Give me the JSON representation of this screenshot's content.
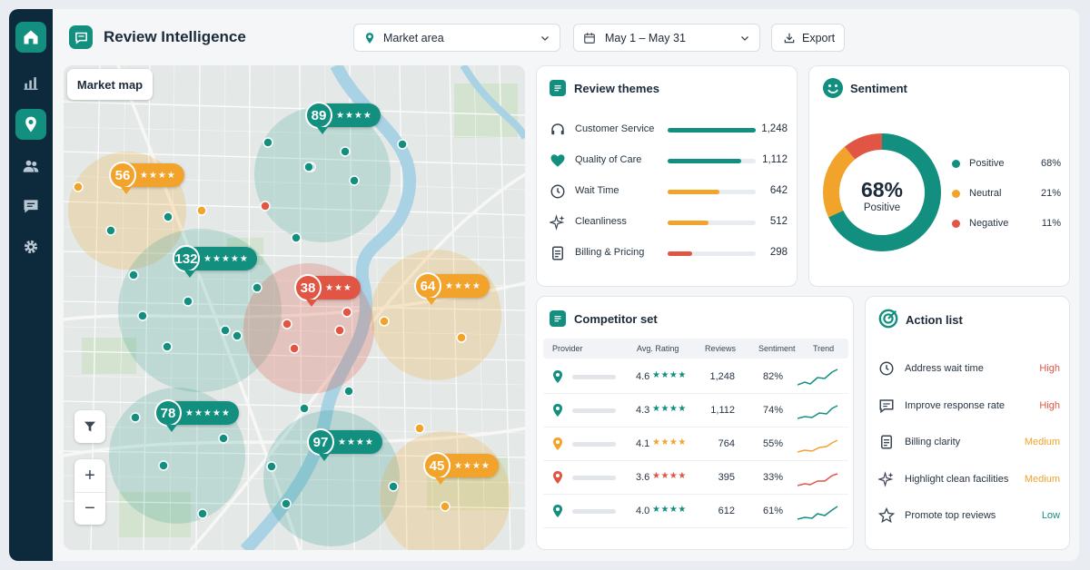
{
  "header": {
    "title": "Review Intelligence",
    "market_select": "Market area",
    "date_select": "May 1 – May 31",
    "export_label": "Export"
  },
  "sidebar": {
    "items": [
      {
        "name": "home",
        "icon": "home-icon",
        "active": true
      },
      {
        "name": "analytics",
        "icon": "bar-chart-icon",
        "active": false
      },
      {
        "name": "locations",
        "icon": "location-pin-icon",
        "active": true
      },
      {
        "name": "people",
        "icon": "users-icon",
        "active": false
      },
      {
        "name": "messages",
        "icon": "chat-icon",
        "active": false
      },
      {
        "name": "settings",
        "icon": "gear-icon",
        "active": false
      }
    ]
  },
  "map": {
    "label": "Market map",
    "pins": [
      {
        "value": "89",
        "stars": "★★★★",
        "color": "#138f80"
      },
      {
        "value": "56",
        "stars": "★★★★",
        "color": "#f2a32b"
      },
      {
        "value": "132",
        "stars": "★★★★★",
        "color": "#138f80"
      },
      {
        "value": "38",
        "stars": "★★★",
        "color": "#e05543"
      },
      {
        "value": "64",
        "stars": "★★★★",
        "color": "#f2a32b"
      },
      {
        "value": "78",
        "stars": "★★★★★",
        "color": "#138f80"
      },
      {
        "value": "97",
        "stars": "★★★★",
        "color": "#138f80"
      },
      {
        "value": "45",
        "stars": "★★★★",
        "color": "#f2a32b"
      }
    ],
    "zoom_in": "+",
    "zoom_out": "−"
  },
  "themes": {
    "title": "Review themes",
    "items": [
      {
        "label": "Customer Service",
        "value": "1,248",
        "fill": 1.0,
        "color": "#138f80"
      },
      {
        "label": "Quality of Care",
        "value": "1,112",
        "fill": 0.83,
        "color": "#138f80"
      },
      {
        "label": "Wait Time",
        "value": "642",
        "fill": 0.59,
        "color": "#f2a32b"
      },
      {
        "label": "Cleanliness",
        "value": "512",
        "fill": 0.46,
        "color": "#f2a32b"
      },
      {
        "label": "Billing & Pricing",
        "value": "298",
        "fill": 0.28,
        "color": "#e05543"
      }
    ]
  },
  "sentiment": {
    "title": "Sentiment",
    "center_value": "68%",
    "center_label": "Positive",
    "items": [
      {
        "label": "Positive",
        "value": "68%",
        "share": 68,
        "color": "#138f80"
      },
      {
        "label": "Neutral",
        "value": "21%",
        "share": 21,
        "color": "#f2a32b"
      },
      {
        "label": "Negative",
        "value": "11%",
        "share": 11,
        "color": "#e05543"
      }
    ]
  },
  "competitors": {
    "title": "Competitor set",
    "columns": [
      "Provider",
      "Avg. Rating",
      "Reviews",
      "Sentiment",
      "Trend"
    ],
    "rows": [
      {
        "rating": "4.6",
        "stars": "★★★★",
        "reviews": "1,248",
        "sentiment": "82%",
        "color": "#138f80"
      },
      {
        "rating": "4.3",
        "stars": "★★★★",
        "reviews": "1,112",
        "sentiment": "74%",
        "color": "#138f80"
      },
      {
        "rating": "4.1",
        "stars": "★★★★",
        "reviews": "764",
        "sentiment": "55%",
        "color": "#f2a32b"
      },
      {
        "rating": "3.6",
        "stars": "★★★★",
        "reviews": "395",
        "sentiment": "33%",
        "color": "#e05543"
      },
      {
        "rating": "4.0",
        "stars": "★★★★",
        "reviews": "612",
        "sentiment": "61%",
        "color": "#138f80"
      }
    ]
  },
  "actions": {
    "title": "Action list",
    "items": [
      {
        "label": "Address wait time",
        "priority": "High",
        "color": "#e05543",
        "icon": "clock-icon"
      },
      {
        "label": "Improve response rate",
        "priority": "High",
        "color": "#e05543",
        "icon": "chat-icon"
      },
      {
        "label": "Billing clarity",
        "priority": "Medium",
        "color": "#f2a32b",
        "icon": "document-icon"
      },
      {
        "label": "Highlight clean facilities",
        "priority": "Medium",
        "color": "#f2a32b",
        "icon": "sparkle-icon"
      },
      {
        "label": "Promote top reviews",
        "priority": "Low",
        "color": "#138f80",
        "icon": "star-icon"
      }
    ]
  }
}
